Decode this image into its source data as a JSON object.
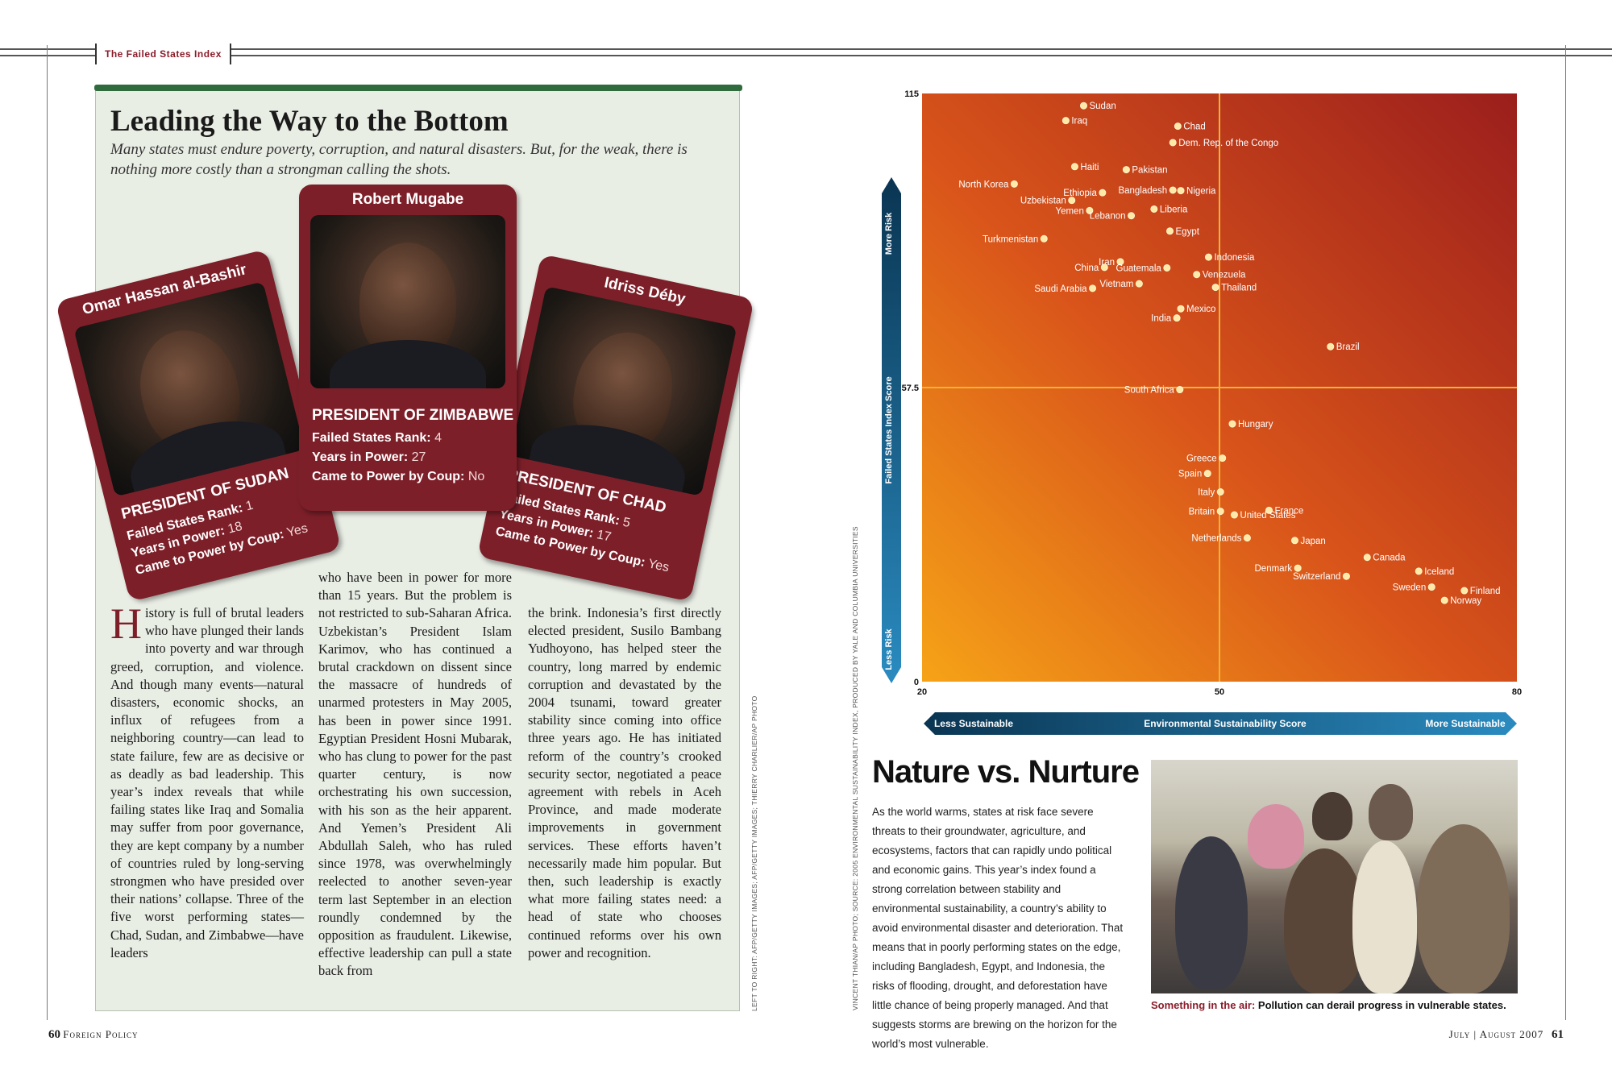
{
  "header": {
    "section_tag": "The Failed States Index"
  },
  "left": {
    "headline": "Leading the Way to the Bottom",
    "dek": "Many states must endure poverty, corruption, and natural disasters. But, for the weak, there is nothing more costly than a strongman calling the shots.",
    "cards": [
      {
        "name": "Omar Hassan al-Bashir",
        "role": "PRESIDENT OF SUDAN",
        "rank_label": "Failed States Rank:",
        "rank": "1",
        "years_label": "Years in Power:",
        "years": "18",
        "coup_label": "Came to Power by Coup:",
        "coup": "Yes"
      },
      {
        "name": "Robert Mugabe",
        "role": "PRESIDENT OF ZIMBABWE",
        "rank_label": "Failed States Rank:",
        "rank": "4",
        "years_label": "Years in Power:",
        "years": "27",
        "coup_label": "Came to Power by Coup:",
        "coup": "No"
      },
      {
        "name": "Idriss Déby",
        "role": "PRESIDENT OF CHAD",
        "rank_label": "Failed States Rank:",
        "rank": "5",
        "years_label": "Years in Power:",
        "years": "17",
        "coup_label": "Came to Power by Coup:",
        "coup": "Yes"
      }
    ],
    "body": {
      "dropcap": "H",
      "col1": "istory is full of brutal leaders who have plunged their lands into poverty and war through greed, corruption, and violence. And though many events—natural disasters, economic shocks, an influx of refugees from a neighboring country—can lead to state failure, few are as decisive or as deadly as bad leadership. This year’s index reveals that while failing states like Iraq and Somalia may suffer from poor governance, they are kept company by a number of countries ruled by long-serving strongmen who have presided over their nations’ collapse. Three of the five worst performing states—Chad, Sudan, and Zimbabwe—have leaders",
      "col2": "who have been in power for more than 15 years. But the problem is not restricted to sub-Saharan Africa. Uzbekistan’s President Islam Karimov, who has continued a brutal crackdown on dissent since the massacre of hundreds of unarmed protesters in May 2005, has been in power since 1991. Egyptian President Hosni Mubarak, who has clung to power for the past quarter century, is now orchestrating his own succession, with his son as the heir apparent. And Yemen’s President Ali Abdullah Saleh, who has ruled since 1978, was overwhelmingly reelected to another seven-year term last September in an election roundly condemned by the opposition as fraudulent. Likewise, effective leadership can pull a state back from",
      "col3": "the brink. Indonesia’s first directly elected president, Susilo Bambang Yudhoyono, has helped steer the country, long marred by endemic corruption and devastated by the 2004 tsunami, toward greater stability since coming into office three years ago. He has initiated reform of the country’s crooked security sector, negotiated a peace agreement with rebels in Aceh Province, and made moderate improvements in government services. These efforts haven’t necessarily made him popular. But then, such leadership is exactly what more failing states need: a head of state who chooses continued reforms over his own power and recognition."
    },
    "photo_credit": "LEFT TO RIGHT: AFP/GETTY IMAGES; AFP/GETTY IMAGES; THIERRY CHARLIER/AP PHOTO",
    "folio_num": "60",
    "folio_text": "Foreign Policy"
  },
  "chart_data": {
    "type": "scatter",
    "x_label": "Environmental Sustainability Score",
    "y_label": "Failed States Index Score",
    "x_left_label": "Less Sustainable",
    "x_right_label": "More Sustainable",
    "y_top_label": "More Risk",
    "y_bottom_label": "Less Risk",
    "xlim": [
      20,
      80
    ],
    "ylim": [
      0,
      115
    ],
    "x_ticks": [
      "20",
      "50",
      "80"
    ],
    "y_ticks": [
      "0",
      "57.5",
      "115"
    ],
    "x_split": 50,
    "y_split": 57.5,
    "colors": {
      "low": "#f6a317",
      "mid": "#d9541a",
      "high": "#9b1e1c",
      "point": "#ffe9a6",
      "line": "#f5b335",
      "axis_dark": "#0a3552",
      "axis_light": "#2a8bc0"
    },
    "points": [
      {
        "label": "Sudan",
        "x": 36.3,
        "y": 112.6
      },
      {
        "label": "Iraq",
        "x": 34.5,
        "y": 109.7
      },
      {
        "label": "Chad",
        "x": 45.8,
        "y": 108.6
      },
      {
        "label": "Dem. Rep. of the Congo",
        "x": 45.3,
        "y": 105.4
      },
      {
        "label": "Haiti",
        "x": 35.4,
        "y": 100.7
      },
      {
        "label": "Pakistan",
        "x": 40.6,
        "y": 100.1
      },
      {
        "label": "North Korea",
        "x": 29.3,
        "y": 97.3
      },
      {
        "label": "Ethiopia",
        "x": 38.2,
        "y": 95.6
      },
      {
        "label": "Bangladesh",
        "x": 45.3,
        "y": 96.1
      },
      {
        "label": "Nigeria",
        "x": 46.1,
        "y": 96.0
      },
      {
        "label": "Uzbekistan",
        "x": 35.1,
        "y": 94.1
      },
      {
        "label": "Yemen",
        "x": 36.9,
        "y": 92.1
      },
      {
        "label": "Liberia",
        "x": 43.4,
        "y": 92.4
      },
      {
        "label": "Lebanon",
        "x": 41.1,
        "y": 91.1
      },
      {
        "label": "Egypt",
        "x": 45.0,
        "y": 88.1
      },
      {
        "label": "Turkmenistan",
        "x": 32.3,
        "y": 86.6
      },
      {
        "label": "Iran",
        "x": 40.0,
        "y": 82.1
      },
      {
        "label": "China",
        "x": 38.4,
        "y": 81.0
      },
      {
        "label": "Guatemala",
        "x": 44.7,
        "y": 80.9
      },
      {
        "label": "Indonesia",
        "x": 48.9,
        "y": 83.0
      },
      {
        "label": "Venezuela",
        "x": 47.7,
        "y": 79.6
      },
      {
        "label": "Vietnam",
        "x": 41.9,
        "y": 77.8
      },
      {
        "label": "Saudi Arabia",
        "x": 37.2,
        "y": 76.9
      },
      {
        "label": "Thailand",
        "x": 49.6,
        "y": 77.1
      },
      {
        "label": "India",
        "x": 45.7,
        "y": 71.1
      },
      {
        "label": "Mexico",
        "x": 46.1,
        "y": 72.9
      },
      {
        "label": "Brazil",
        "x": 61.2,
        "y": 65.5
      },
      {
        "label": "South Africa",
        "x": 46.0,
        "y": 57.1
      },
      {
        "label": "Hungary",
        "x": 51.3,
        "y": 50.4
      },
      {
        "label": "Greece",
        "x": 50.3,
        "y": 43.7
      },
      {
        "label": "Spain",
        "x": 48.8,
        "y": 40.7
      },
      {
        "label": "Italy",
        "x": 50.1,
        "y": 37.1
      },
      {
        "label": "Britain",
        "x": 50.1,
        "y": 33.3
      },
      {
        "label": "France",
        "x": 55.0,
        "y": 33.5
      },
      {
        "label": "United States",
        "x": 51.5,
        "y": 32.6
      },
      {
        "label": "Netherlands",
        "x": 52.8,
        "y": 28.1
      },
      {
        "label": "Japan",
        "x": 57.6,
        "y": 27.6
      },
      {
        "label": "Canada",
        "x": 64.9,
        "y": 24.3
      },
      {
        "label": "Denmark",
        "x": 57.9,
        "y": 22.2
      },
      {
        "label": "Iceland",
        "x": 70.1,
        "y": 21.6
      },
      {
        "label": "Switzerland",
        "x": 62.8,
        "y": 20.6
      },
      {
        "label": "Sweden",
        "x": 71.4,
        "y": 18.5
      },
      {
        "label": "Finland",
        "x": 74.7,
        "y": 17.8
      },
      {
        "label": "Norway",
        "x": 72.7,
        "y": 15.9
      }
    ]
  },
  "right": {
    "chart_credit": "VINCENT THIAN/AP PHOTO; SOURCE: 2005 ENVIRONMENTAL SUSTAINABILITY INDEX, PRODUCED BY YALE AND COLUMBIA UNIVERSITIES",
    "title": "Nature vs. Nurture",
    "body": "As the world warms, states at risk face severe threats to their groundwater, agriculture, and ecosystems, factors that can rapidly undo political and economic gains. This year’s index found a strong correlation between stability and environmental sustainability, a country’s ability to avoid environmental disaster and deterioration. That means that in poorly performing states on the edge, including Bangladesh, Egypt, and Indonesia, the risks of flooding, drought, and deforestation have little chance of being properly managed. And that suggests storms are brewing on the horizon for the world’s most vulnerable.",
    "caption_lead": "Something in the air:",
    "caption_text": "Pollution can derail progress in vulnerable states.",
    "folio_date": "July | August 2007",
    "folio_num": "61"
  }
}
